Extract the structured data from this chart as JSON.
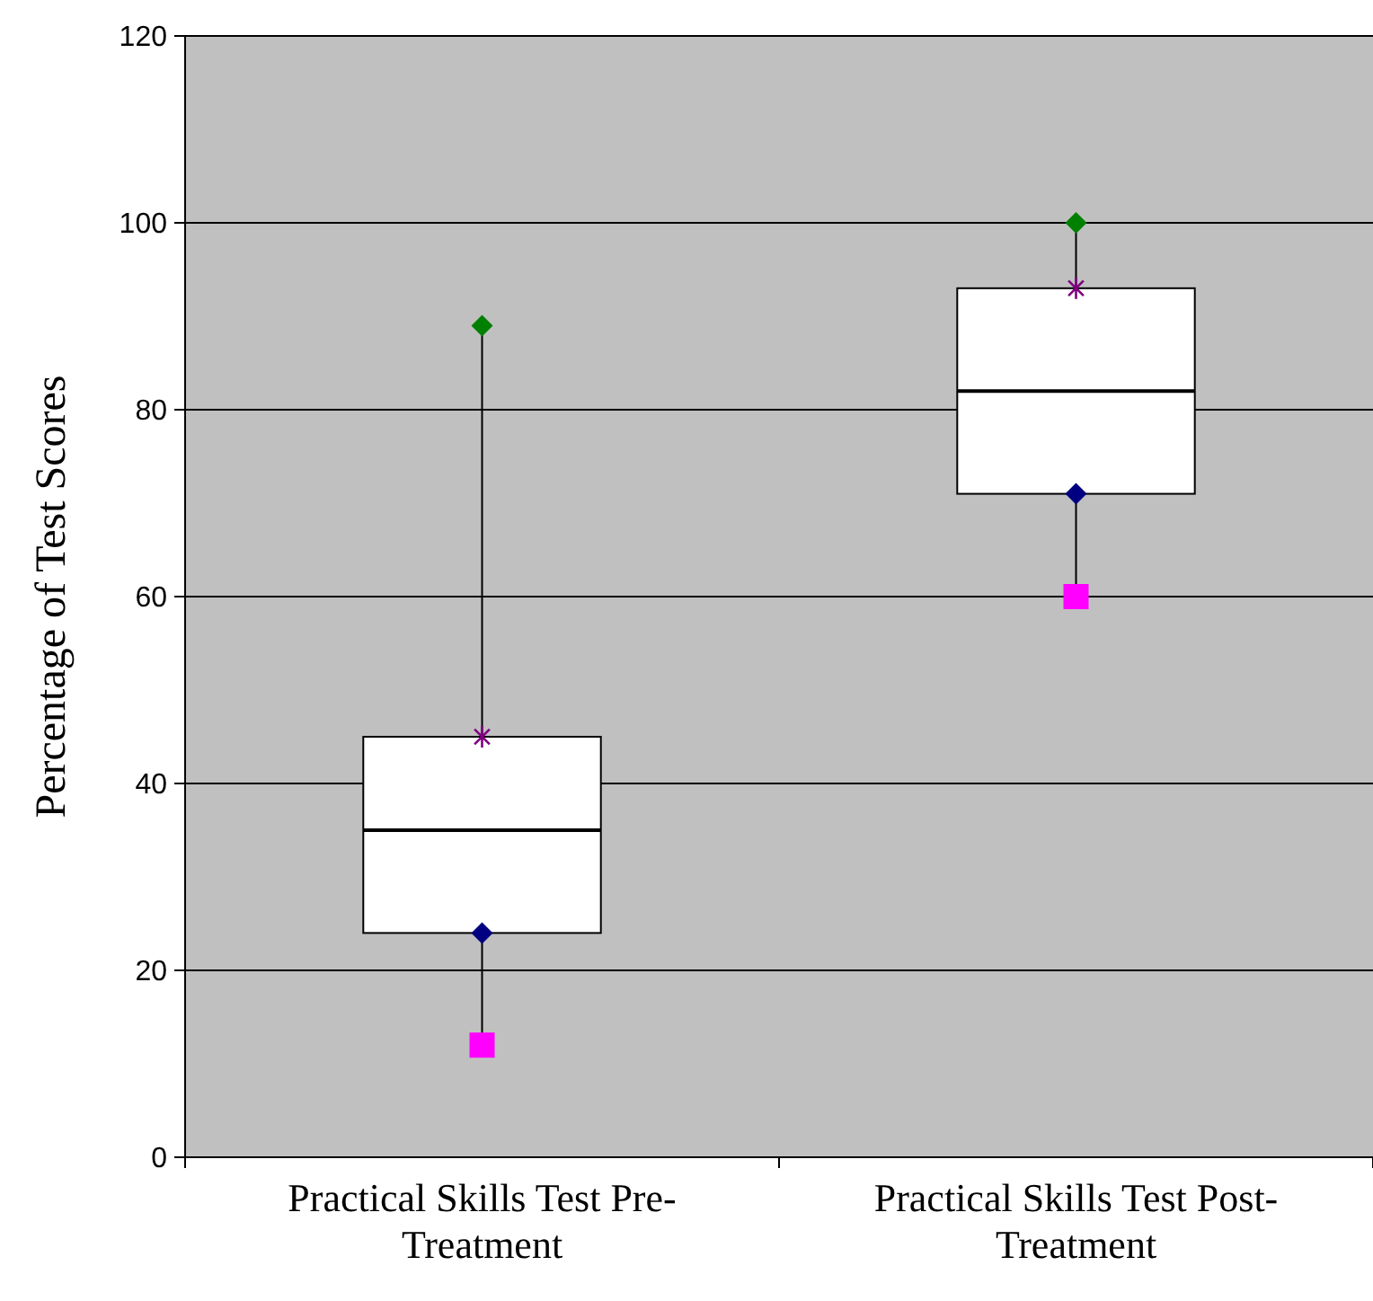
{
  "chart_data": {
    "type": "box",
    "ylabel": "Percentage of Test Scores",
    "categories": [
      "Practical Skills Test Pre-Treatment",
      "Practical Skills Test Post-Treatment"
    ],
    "boxes": [
      {
        "low": 12,
        "q1": 24,
        "median": 35,
        "q3": 45,
        "high": 89
      },
      {
        "low": 60,
        "q1": 71,
        "median": 82,
        "q3": 93,
        "high": 100
      }
    ],
    "series": [
      {
        "type": "scatter",
        "x": [
          "Practical Skills Test Pre-Treatment",
          "Practical Skills Test Post-Treatment"
        ],
        "values": [
          89,
          100
        ],
        "color": "#008000",
        "marker": "diamond"
      },
      {
        "type": "scatter",
        "x": [
          "Practical Skills Test Pre-Treatment",
          "Practical Skills Test Post-Treatment"
        ],
        "values": [
          45,
          93
        ],
        "color": "#800080",
        "marker": "cross"
      },
      {
        "type": "scatter",
        "x": [
          "Practical Skills Test Pre-Treatment",
          "Practical Skills Test Post-Treatment"
        ],
        "values": [
          24,
          71
        ],
        "color": "#000080",
        "marker": "diamond"
      },
      {
        "type": "scatter",
        "x": [
          "Practical Skills Test Pre-Treatment",
          "Practical Skills Test Post-Treatment"
        ],
        "values": [
          12,
          60
        ],
        "color": "#ff00ff",
        "marker": "square"
      }
    ],
    "ylim": [
      0,
      120
    ],
    "yticks": [
      0,
      20,
      40,
      60,
      80,
      100,
      120
    ],
    "grid": "y"
  }
}
